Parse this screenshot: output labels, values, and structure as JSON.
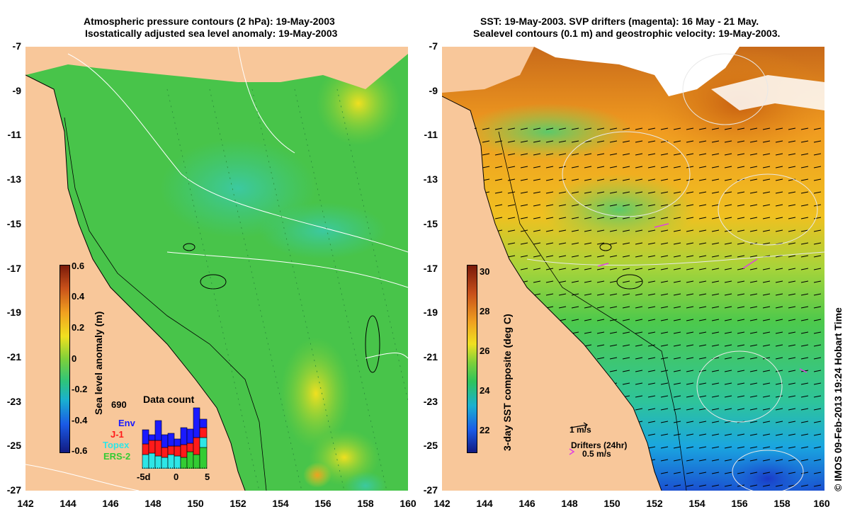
{
  "left": {
    "title_line1": "Atmospheric pressure contours (2 hPa): 19-May-2003",
    "title_line2": "Isostatically adjusted sea level anomaly: 19-May-2003",
    "colorbar_label": "Sea level anomaly (m)",
    "colorbar_ticks": [
      "0.6",
      "0.4",
      "0.2",
      "0",
      "-0.2",
      "-0.4",
      "-0.6"
    ],
    "inset": {
      "title": "Data count",
      "max_label": "690",
      "legend": [
        {
          "name": "Env",
          "color": "#1a1aff"
        },
        {
          "name": "J-1",
          "color": "#ff1a1a"
        },
        {
          "name": "Topex",
          "color": "#2ee6e6"
        },
        {
          "name": "ERS-2",
          "color": "#33cc33"
        }
      ],
      "xticks": [
        "-5d",
        "0",
        "5"
      ]
    }
  },
  "right": {
    "title_line1": "SST: 19-May-2003. SVP drifters (magenta): 16 May - 21 May.",
    "title_line2": "Sealevel contours (0.1 m) and geostrophic velocity: 19-May-2003.",
    "colorbar_label": "3-day SST composite (deg C)",
    "colorbar_ticks": [
      "30",
      "28",
      "26",
      "24",
      "22"
    ],
    "velocity_scale": "1 m/s",
    "drifters_label": "Drifters (24hr)",
    "drifters_scale": "0.5 m/s"
  },
  "y_ticks": [
    "-7",
    "-9",
    "-11",
    "-13",
    "-15",
    "-17",
    "-19",
    "-21",
    "-23",
    "-25",
    "-27"
  ],
  "x_ticks": [
    "142",
    "144",
    "146",
    "148",
    "150",
    "152",
    "154",
    "156",
    "158",
    "160"
  ],
  "credit": "© IMOS 09-Feb-2013 19:24 Hobart Time",
  "colors": {
    "land": "#f8c79a",
    "ocean_green": "#4cc94c",
    "sst_orange": "#f0a020"
  }
}
